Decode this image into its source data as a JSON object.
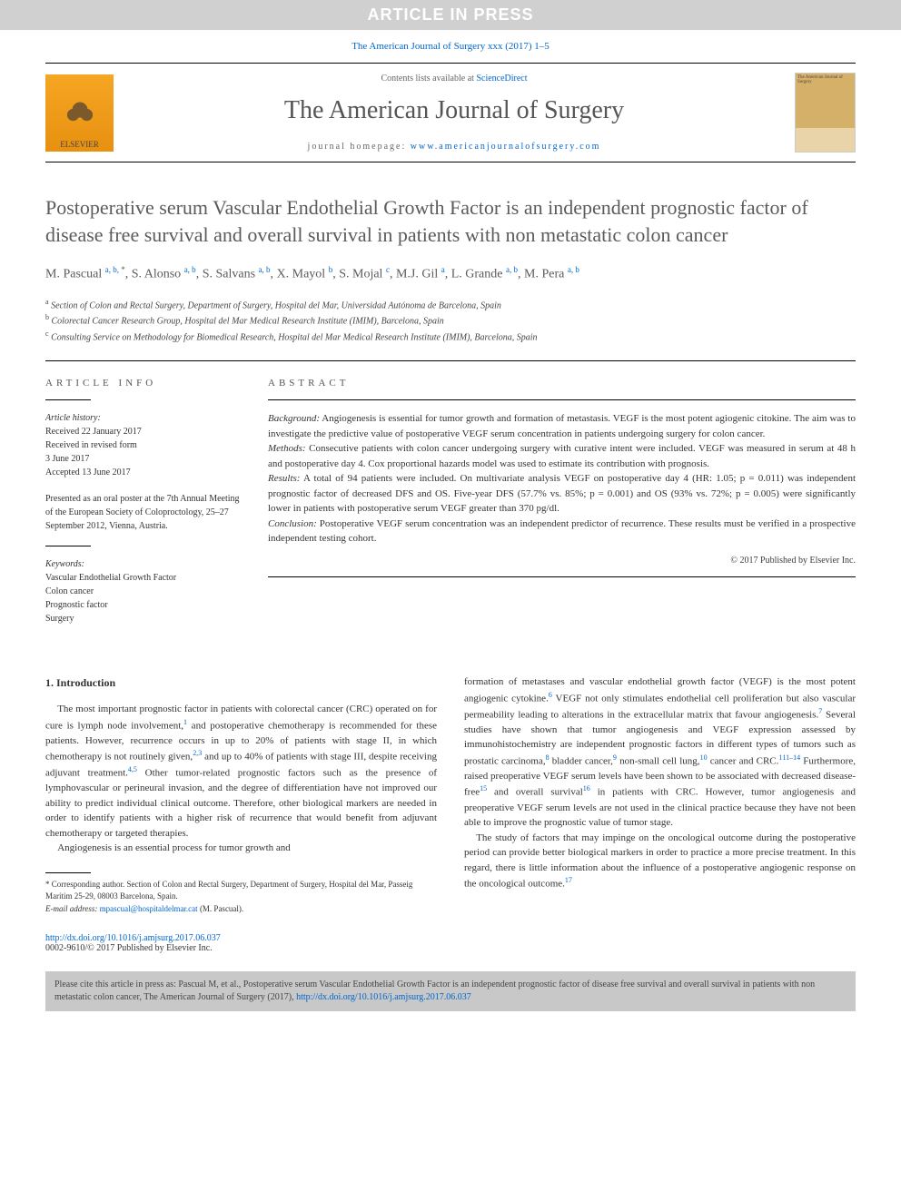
{
  "banner": "ARTICLE IN PRESS",
  "citation_top": "The American Journal of Surgery xxx (2017) 1–5",
  "header": {
    "publisher": "ELSEVIER",
    "contents_prefix": "Contents lists available at ",
    "contents_link": "ScienceDirect",
    "journal_name": "The American Journal of Surgery",
    "homepage_prefix": "journal homepage: ",
    "homepage_url": "www.americanjournalofsurgery.com",
    "cover_text": "The American Journal of Surgery"
  },
  "title": "Postoperative serum Vascular Endothelial Growth Factor is an independent prognostic factor of disease free survival and overall survival in patients with non metastatic colon cancer",
  "authors": [
    {
      "name": "M. Pascual",
      "sup": "a, b, ",
      "star": "*"
    },
    {
      "name": "S. Alonso",
      "sup": "a, b"
    },
    {
      "name": "S. Salvans",
      "sup": "a, b"
    },
    {
      "name": "X. Mayol",
      "sup": "b"
    },
    {
      "name": "S. Mojal",
      "sup": "c"
    },
    {
      "name": "M.J. Gil",
      "sup": "a"
    },
    {
      "name": "L. Grande",
      "sup": "a, b"
    },
    {
      "name": "M. Pera",
      "sup": "a, b"
    }
  ],
  "affiliations": {
    "a": "Section of Colon and Rectal Surgery, Department of Surgery, Hospital del Mar, Universidad Autónoma de Barcelona, Spain",
    "b": "Colorectal Cancer Research Group, Hospital del Mar Medical Research Institute (IMIM), Barcelona, Spain",
    "c": "Consulting Service on Methodology for Biomedical Research, Hospital del Mar Medical Research Institute (IMIM), Barcelona, Spain"
  },
  "article_info": {
    "label": "ARTICLE INFO",
    "history_label": "Article history:",
    "history": [
      "Received 22 January 2017",
      "Received in revised form",
      "3 June 2017",
      "Accepted 13 June 2017"
    ],
    "presented": "Presented as an oral poster at the 7th Annual Meeting of the European Society of Coloproctology, 25–27 September 2012, Vienna, Austria.",
    "keywords_label": "Keywords:",
    "keywords": [
      "Vascular Endothelial Growth Factor",
      "Colon cancer",
      "Prognostic factor",
      "Surgery"
    ]
  },
  "abstract": {
    "label": "ABSTRACT",
    "sections": {
      "Background:": "Angiogenesis is essential for tumor growth and formation of metastasis. VEGF is the most potent agiogenic citokine. The aim was to investigate the predictive value of postoperative VEGF serum concentration in patients undergoing surgery for colon cancer.",
      "Methods:": "Consecutive patients with colon cancer undergoing surgery with curative intent were included. VEGF was measured in serum at 48 h and postoperative day 4. Cox proportional hazards model was used to estimate its contribution with prognosis.",
      "Results:": "A total of 94 patients were included. On multivariate analysis VEGF on postoperative day 4 (HR: 1.05; p = 0.011) was independent prognostic factor of decreased DFS and OS. Five-year DFS (57.7% vs. 85%; p = 0.001) and OS (93% vs. 72%; p = 0.005) were significantly lower in patients with postoperative serum VEGF greater than 370 pg/dl.",
      "Conclusion:": "Postoperative VEGF serum concentration was an independent predictor of recurrence. These results must be verified in a prospective independent testing cohort."
    },
    "copyright": "© 2017 Published by Elsevier Inc."
  },
  "body": {
    "section_heading": "1. Introduction",
    "col1_p1": "The most important prognostic factor in patients with colorectal cancer (CRC) operated on for cure is lymph node involvement,¹ and postoperative chemotherapy is recommended for these patients. However, recurrence occurs in up to 20% of patients with stage II, in which chemotherapy is not routinely given,²,³ and up to 40% of patients with stage III, despite receiving adjuvant treatment.⁴,⁵ Other tumor-related prognostic factors such as the presence of lymphovascular or perineural invasion, and the degree of differentiation have not improved our ability to predict individual clinical outcome. Therefore, other biological markers are needed in order to identify patients with a higher risk of recurrence that would benefit from adjuvant chemotherapy or targeted therapies.",
    "col1_p2": "Angiogenesis is an essential process for tumor growth and",
    "col2_p1": "formation of metastases and vascular endothelial growth factor (VEGF) is the most potent angiogenic cytokine.⁶ VEGF not only stimulates endothelial cell proliferation but also vascular permeability leading to alterations in the extracellular matrix that favour angiogenesis.⁷ Several studies have shown that tumor angiogenesis and VEGF expression assessed by immunohistochemistry are independent prognostic factors in different types of tumors such as prostatic carcinoma,⁸ bladder cancer,⁹ non-small cell lung,¹⁰ cancer and CRC.¹¹⁻¹⁴ Furthermore, raised preoperative VEGF serum levels have been shown to be associated with decreased disease-free¹⁵ and overall survival¹⁶ in patients with CRC. However, tumor angiogenesis and preoperative VEGF serum levels are not used in the clinical practice because they have not been able to improve the prognostic value of tumor stage.",
    "col2_p2": "The study of factors that may impinge on the oncological outcome during the postoperative period can provide better biological markers in order to practice a more precise treatment. In this regard, there is little information about the influence of a postoperative angiogenic response on the oncological outcome.¹⁷"
  },
  "footnotes": {
    "corresponding": "* Corresponding author. Section of Colon and Rectal Surgery, Department of Surgery, Hospital del Mar, Passeig Marítim 25-29, 08003 Barcelona, Spain.",
    "email_label": "E-mail address: ",
    "email": "mpascual@hospitaldelmar.cat",
    "email_suffix": " (M. Pascual)."
  },
  "doi": {
    "url": "http://dx.doi.org/10.1016/j.amjsurg.2017.06.037",
    "issn_line": "0002-9610/© 2017 Published by Elsevier Inc."
  },
  "cite_box": {
    "text": "Please cite this article in press as: Pascual M, et al., Postoperative serum Vascular Endothelial Growth Factor is an independent prognostic factor of disease free survival and overall survival in patients with non metastatic colon cancer, The American Journal of Surgery (2017), ",
    "url": "http://dx.doi.org/10.1016/j.amjsurg.2017.06.037"
  },
  "colors": {
    "link": "#0066cc",
    "banner_bg": "#d0d0d0",
    "text": "#3b3b3b",
    "citebox_bg": "#c8c8c8"
  }
}
